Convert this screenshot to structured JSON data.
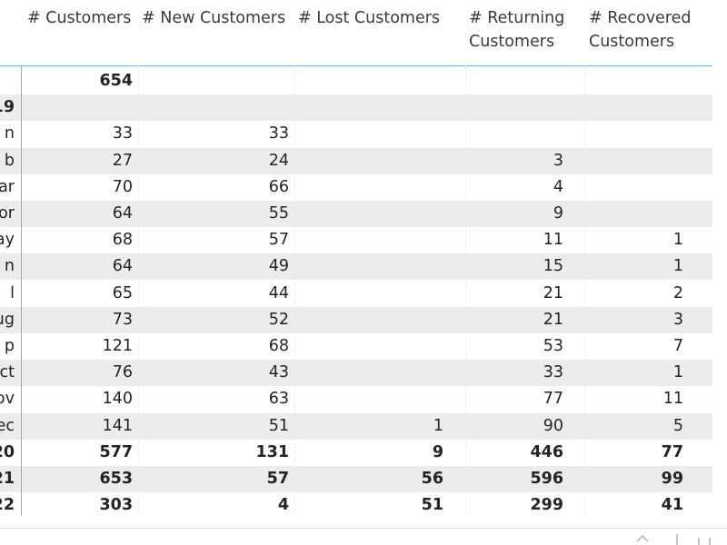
{
  "header": {
    "columns": [
      "# Customers",
      "# New Customers",
      "# Lost Customers",
      "# Returning Customers",
      "# Recovered Customers"
    ],
    "returning_line1": "# Returning",
    "returning_line2": "Customers",
    "recovered_line1": "# Recovered",
    "recovered_line2": "Customers"
  },
  "rows": [
    {
      "label": "",
      "customers": "654",
      "new": "",
      "lost": "",
      "returning": "",
      "recovered": "",
      "bold": true,
      "shade": false
    },
    {
      "label": "19",
      "customers": "",
      "new": "",
      "lost": "",
      "returning": "",
      "recovered": "",
      "bold": true,
      "shade": true
    },
    {
      "label": "n",
      "customers": "33",
      "new": "33",
      "lost": "",
      "returning": "",
      "recovered": "",
      "bold": false,
      "shade": false
    },
    {
      "label": "b",
      "customers": "27",
      "new": "24",
      "lost": "",
      "returning": "3",
      "recovered": "",
      "bold": false,
      "shade": true
    },
    {
      "label": "ar",
      "customers": "70",
      "new": "66",
      "lost": "",
      "returning": "4",
      "recovered": "",
      "bold": false,
      "shade": false
    },
    {
      "label": "or",
      "customers": "64",
      "new": "55",
      "lost": "",
      "returning": "9",
      "recovered": "",
      "bold": false,
      "shade": true
    },
    {
      "label": "ay",
      "customers": "68",
      "new": "57",
      "lost": "",
      "returning": "11",
      "recovered": "1",
      "bold": false,
      "shade": false
    },
    {
      "label": "n",
      "customers": "64",
      "new": "49",
      "lost": "",
      "returning": "15",
      "recovered": "1",
      "bold": false,
      "shade": true
    },
    {
      "label": "l",
      "customers": "65",
      "new": "44",
      "lost": "",
      "returning": "21",
      "recovered": "2",
      "bold": false,
      "shade": false
    },
    {
      "label": "ug",
      "customers": "73",
      "new": "52",
      "lost": "",
      "returning": "21",
      "recovered": "3",
      "bold": false,
      "shade": true
    },
    {
      "label": "p",
      "customers": "121",
      "new": "68",
      "lost": "",
      "returning": "53",
      "recovered": "7",
      "bold": false,
      "shade": false
    },
    {
      "label": "ct",
      "customers": "76",
      "new": "43",
      "lost": "",
      "returning": "33",
      "recovered": "1",
      "bold": false,
      "shade": true
    },
    {
      "label": "ov",
      "customers": "140",
      "new": "63",
      "lost": "",
      "returning": "77",
      "recovered": "11",
      "bold": false,
      "shade": false
    },
    {
      "label": "ec",
      "customers": "141",
      "new": "51",
      "lost": "1",
      "returning": "90",
      "recovered": "5",
      "bold": false,
      "shade": true
    },
    {
      "label": "20",
      "customers": "577",
      "new": "131",
      "lost": "9",
      "returning": "446",
      "recovered": "77",
      "bold": true,
      "shade": false
    },
    {
      "label": "21",
      "customers": "653",
      "new": "57",
      "lost": "56",
      "returning": "596",
      "recovered": "99",
      "bold": true,
      "shade": true
    },
    {
      "label": "22",
      "customers": "303",
      "new": "4",
      "lost": "51",
      "returning": "299",
      "recovered": "41",
      "bold": true,
      "shade": false
    }
  ],
  "colors": {
    "accent": "#6eb6e3",
    "row_shade": "#ececec",
    "text": "#252423"
  },
  "footer_icons": [
    "scroll-up-icon",
    "resize-handle-icon",
    "more-icon"
  ]
}
